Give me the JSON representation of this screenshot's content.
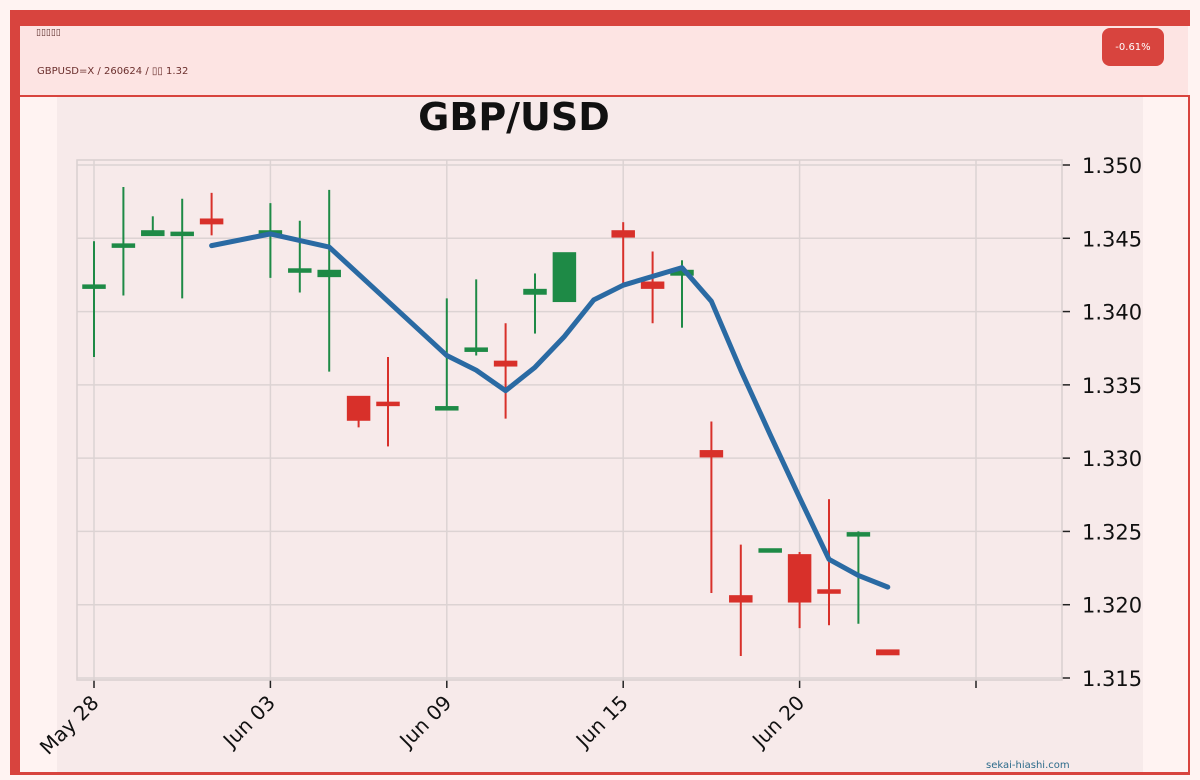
{
  "header": {
    "title": "▯▯▯▯▯",
    "subtitle": "GBPUSD=X / 260624 / ▯▯ 1.32",
    "change_badge": "-0.61%"
  },
  "watermark": "sekai-hiashi.com",
  "colors": {
    "up": "#1e8a46",
    "down": "#d8302a",
    "ma_line": "#2a6aa3",
    "frame": "#d8443e"
  },
  "chart_data": {
    "type": "candlestick",
    "title": "GBP/USD",
    "xlabel": "",
    "ylabel": "",
    "ylim": [
      1.315,
      1.35
    ],
    "yticks": [
      "1.315",
      "1.320",
      "1.325",
      "1.330",
      "1.335",
      "1.340",
      "1.345",
      "1.350"
    ],
    "xticks": [
      {
        "label": "May 28",
        "day": 0
      },
      {
        "label": "Jun 03",
        "day": 6
      },
      {
        "label": "Jun 09",
        "day": 12
      },
      {
        "label": "Jun 15",
        "day": 18
      },
      {
        "label": "Jun 20",
        "day": 24
      },
      {
        "label": "",
        "day": 30
      }
    ],
    "grid": true,
    "candles": [
      {
        "day": 0,
        "open": 1.3415,
        "high": 1.3448,
        "low": 1.3369,
        "close": 1.3417
      },
      {
        "day": 1,
        "open": 1.3445,
        "high": 1.3485,
        "low": 1.3411,
        "close": 1.3445
      },
      {
        "day": 2,
        "open": 1.3452,
        "high": 1.3465,
        "low": 1.3452,
        "close": 1.3455
      },
      {
        "day": 3,
        "open": 1.3451,
        "high": 1.3477,
        "low": 1.3409,
        "close": 1.3453
      },
      {
        "day": 4,
        "open": 1.3463,
        "high": 1.3481,
        "low": 1.3452,
        "close": 1.346
      },
      {
        "day": 6,
        "open": 1.3452,
        "high": 1.3474,
        "low": 1.3423,
        "close": 1.3455
      },
      {
        "day": 7,
        "open": 1.3428,
        "high": 1.3462,
        "low": 1.3413,
        "close": 1.3428
      },
      {
        "day": 8,
        "open": 1.3424,
        "high": 1.3483,
        "low": 1.3359,
        "close": 1.3428
      },
      {
        "day": 9,
        "open": 1.3342,
        "high": 1.3342,
        "low": 1.3321,
        "close": 1.3326
      },
      {
        "day": 10,
        "open": 1.3337,
        "high": 1.3369,
        "low": 1.3308,
        "close": 1.3336
      },
      {
        "day": 12,
        "open": 1.3333,
        "high": 1.3409,
        "low": 1.3333,
        "close": 1.3334
      },
      {
        "day": 13,
        "open": 1.3372,
        "high": 1.3422,
        "low": 1.337,
        "close": 1.3374
      },
      {
        "day": 14,
        "open": 1.3366,
        "high": 1.3392,
        "low": 1.3327,
        "close": 1.3363
      },
      {
        "day": 15,
        "open": 1.3412,
        "high": 1.3426,
        "low": 1.3385,
        "close": 1.3415
      },
      {
        "day": 16,
        "open": 1.3407,
        "high": 1.344,
        "low": 1.3407,
        "close": 1.344
      },
      {
        "day": 18,
        "open": 1.3455,
        "high": 1.3461,
        "low": 1.3419,
        "close": 1.3451
      },
      {
        "day": 19,
        "open": 1.342,
        "high": 1.3441,
        "low": 1.3392,
        "close": 1.3416
      },
      {
        "day": 20,
        "open": 1.3425,
        "high": 1.3435,
        "low": 1.3389,
        "close": 1.3428
      },
      {
        "day": 21,
        "open": 1.3305,
        "high": 1.3325,
        "low": 1.3208,
        "close": 1.3301
      },
      {
        "day": 22,
        "open": 1.3206,
        "high": 1.3241,
        "low": 1.3165,
        "close": 1.3202
      },
      {
        "day": 23,
        "open": 1.3237,
        "high": 1.3237,
        "low": 1.3236,
        "close": 1.3237
      },
      {
        "day": 24,
        "open": 1.3234,
        "high": 1.3236,
        "low": 1.3184,
        "close": 1.3202
      },
      {
        "day": 25,
        "open": 1.3209,
        "high": 1.3272,
        "low": 1.3186,
        "close": 1.3208
      },
      {
        "day": 26,
        "open": 1.3246,
        "high": 1.325,
        "low": 1.3187,
        "close": 1.3248
      },
      {
        "day": 27,
        "open": 1.3169,
        "high": 1.3169,
        "low": 1.3166,
        "close": 1.3166
      }
    ],
    "moving_average": [
      {
        "day": 4,
        "value": 1.3445
      },
      {
        "day": 6,
        "value": 1.3453
      },
      {
        "day": 8,
        "value": 1.3444
      },
      {
        "day": 12,
        "value": 1.337
      },
      {
        "day": 13,
        "value": 1.336
      },
      {
        "day": 14,
        "value": 1.3346
      },
      {
        "day": 15,
        "value": 1.3362
      },
      {
        "day": 16,
        "value": 1.3383
      },
      {
        "day": 17,
        "value": 1.3408
      },
      {
        "day": 18,
        "value": 1.3418
      },
      {
        "day": 20,
        "value": 1.343
      },
      {
        "day": 21,
        "value": 1.3407
      },
      {
        "day": 22,
        "value": 1.336
      },
      {
        "day": 23,
        "value": 1.3316
      },
      {
        "day": 24,
        "value": 1.3273
      },
      {
        "day": 25,
        "value": 1.3231
      },
      {
        "day": 26,
        "value": 1.322
      },
      {
        "day": 27,
        "value": 1.3212
      }
    ]
  }
}
